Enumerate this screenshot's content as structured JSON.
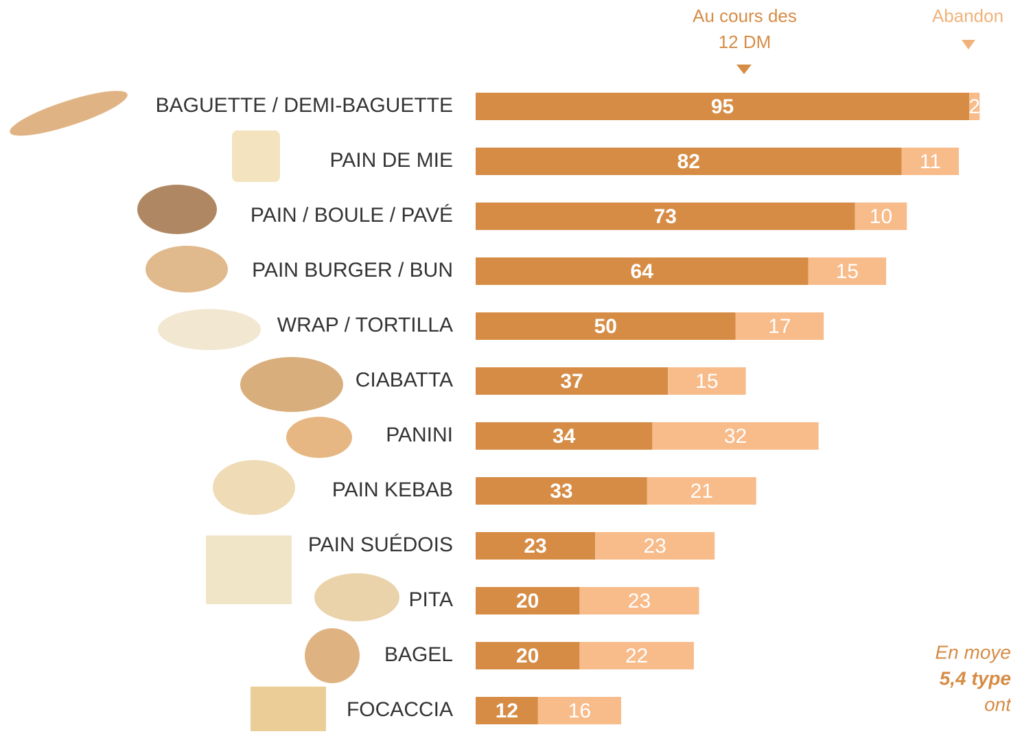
{
  "chart_data": {
    "type": "stacked-bar",
    "categories": [
      "BAGUETTE / DEMI-BAGUETTE",
      "PAIN DE MIE",
      "PAIN / BOULE / PAVÉ",
      "PAIN BURGER / BUN",
      "WRAP / TORTILLA",
      "CIABATTA",
      "PANINI",
      "PAIN KEBAB",
      "PAIN SUÉDOIS",
      "PITA",
      "BAGEL",
      "FOCACCIA"
    ],
    "series": [
      {
        "name": "Au cours des 12 DM",
        "color": "#d68c45",
        "values": [
          95,
          82,
          73,
          64,
          50,
          37,
          34,
          33,
          23,
          20,
          20,
          12
        ]
      },
      {
        "name": "Abandon",
        "color": "#f8bb8a",
        "values": [
          2,
          11,
          10,
          15,
          17,
          15,
          32,
          21,
          23,
          23,
          22,
          16
        ]
      }
    ],
    "annotation": [
      "En moye",
      "5,4 type",
      "ont"
    ]
  }
}
